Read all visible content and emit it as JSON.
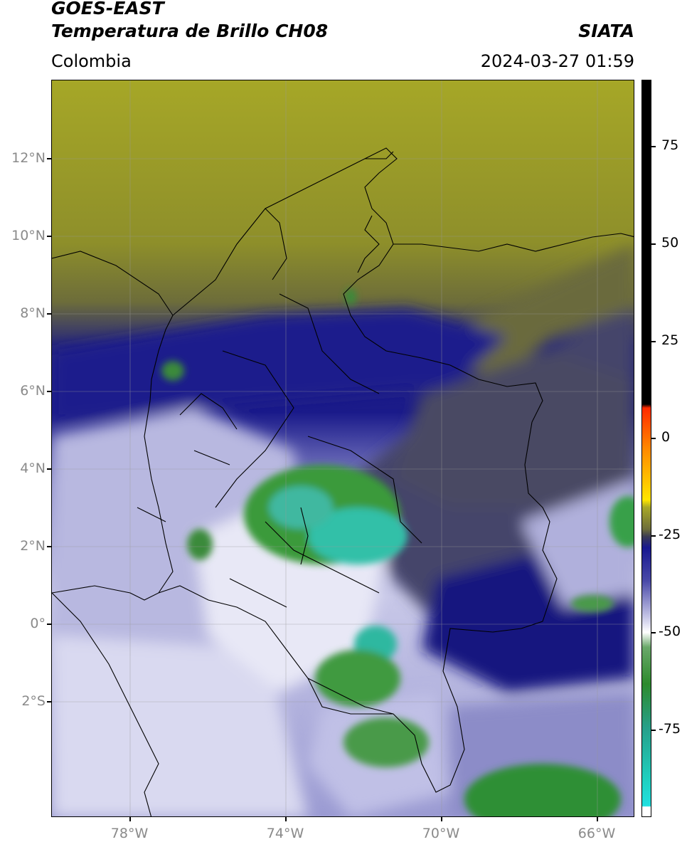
{
  "header": {
    "satellite": "GOES-EAST",
    "product": "Temperatura de Brillo CH08",
    "region": "Colombia",
    "agency": "SIATA",
    "timestamp": "2024-03-27 01:59"
  },
  "map": {
    "lat_labels": [
      "12°N",
      "10°N",
      "8°N",
      "6°N",
      "4°N",
      "2°N",
      "0°",
      "2°S"
    ],
    "lon_labels": [
      "78°W",
      "74°W",
      "70°W",
      "66°W"
    ],
    "extent": {
      "lon_min": -80,
      "lon_max": -65,
      "lat_min": -5,
      "lat_max": 14
    }
  },
  "colorbar": {
    "ticks": [
      "75",
      "50",
      "25",
      "0",
      "-25",
      "-50",
      "-75"
    ],
    "colors": [
      "#000000",
      "#ff2a00",
      "#ffe600",
      "#a8a827",
      "#3a3a54",
      "#181890",
      "#ffffff",
      "#2d8a2d",
      "#1fd0c0"
    ]
  }
}
